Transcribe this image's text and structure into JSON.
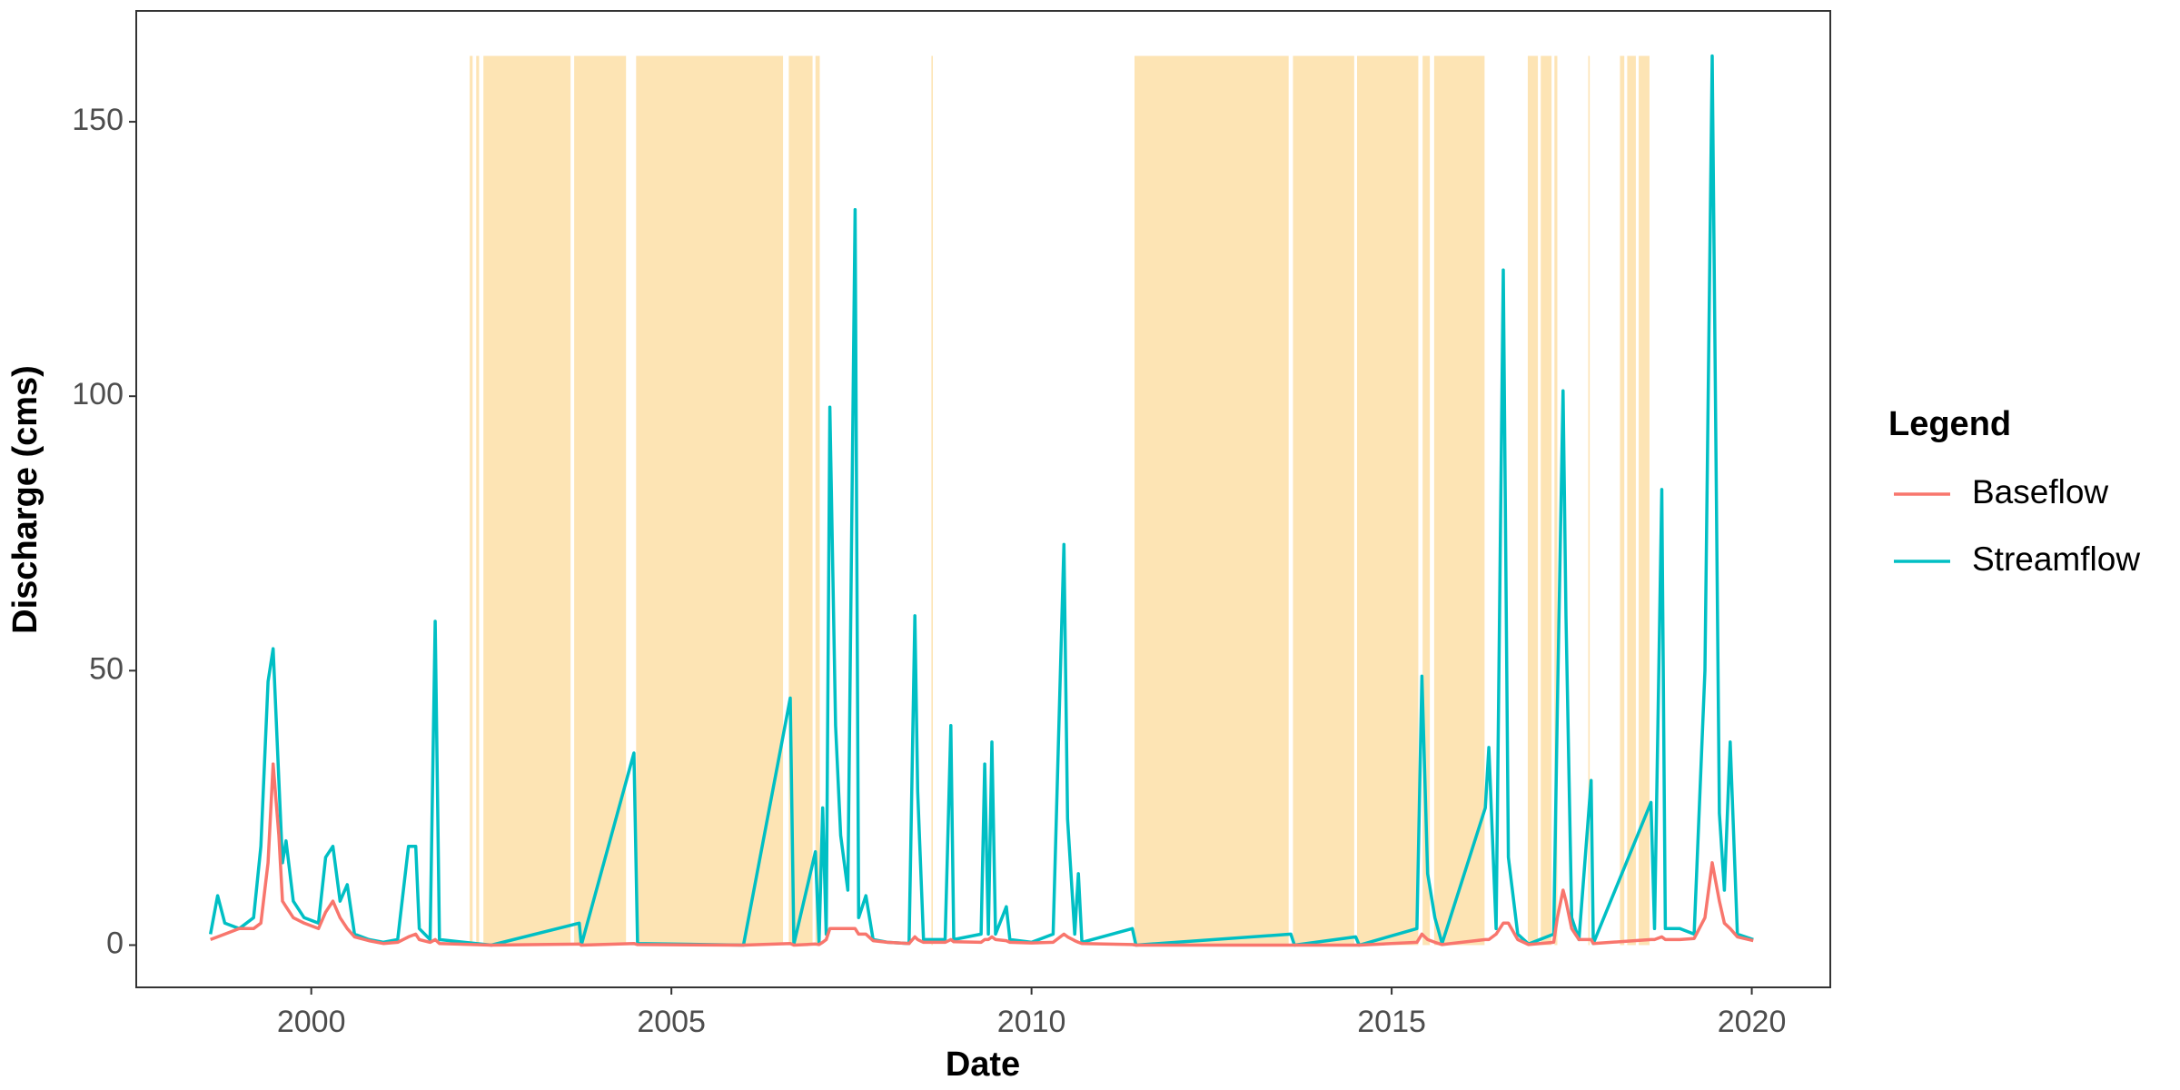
{
  "chart_data": {
    "type": "line",
    "x_label": "Date",
    "y_label": "Discharge (cms)",
    "legend_title": "Legend",
    "legend_position": "right",
    "xlim": [
      1997.57,
      2021.09
    ],
    "xticks": [
      2000,
      2005,
      2010,
      2015,
      2020
    ],
    "ylim": [
      -7.7,
      170.2
    ],
    "yticks": [
      0,
      50,
      100,
      150
    ],
    "grid": false,
    "shade_color": "#fde4b4",
    "shade_ymax": 162,
    "shaded_spans": [
      [
        2002.2,
        2002.24
      ],
      [
        2002.29,
        2002.33
      ],
      [
        2002.39,
        2003.6
      ],
      [
        2003.65,
        2004.37
      ],
      [
        2004.51,
        2006.55
      ],
      [
        2006.63,
        2006.96
      ],
      [
        2007.0,
        2007.06
      ],
      [
        2008.61,
        2008.63
      ],
      [
        2011.43,
        2013.57
      ],
      [
        2013.63,
        2014.48
      ],
      [
        2014.52,
        2015.37
      ],
      [
        2015.43,
        2015.53
      ],
      [
        2015.59,
        2016.29
      ],
      [
        2016.89,
        2017.03
      ],
      [
        2017.07,
        2017.22
      ],
      [
        2017.26,
        2017.3
      ],
      [
        2017.73,
        2017.75
      ],
      [
        2018.17,
        2018.23
      ],
      [
        2018.27,
        2018.39
      ],
      [
        2018.43,
        2018.58
      ]
    ],
    "x": [
      1998.6,
      1998.7,
      1998.8,
      1999.0,
      1999.2,
      1999.3,
      1999.4,
      1999.47,
      1999.55,
      1999.6,
      1999.65,
      1999.75,
      1999.9,
      2000.1,
      2000.2,
      2000.3,
      2000.4,
      2000.5,
      2000.6,
      2000.8,
      2001.0,
      2001.2,
      2001.35,
      2001.45,
      2001.5,
      2001.65,
      2001.72,
      2001.78,
      2002.5,
      2003.72,
      2003.75,
      2004.48,
      2004.53,
      2006.0,
      2006.65,
      2006.7,
      2007.0,
      2007.05,
      2007.1,
      2007.15,
      2007.2,
      2007.28,
      2007.35,
      2007.45,
      2007.55,
      2007.6,
      2007.7,
      2007.8,
      2008.0,
      2008.3,
      2008.38,
      2008.42,
      2008.5,
      2008.8,
      2008.88,
      2008.92,
      2009.3,
      2009.35,
      2009.4,
      2009.45,
      2009.5,
      2009.65,
      2009.7,
      2010.0,
      2010.3,
      2010.45,
      2010.5,
      2010.6,
      2010.65,
      2010.7,
      2011.4,
      2011.45,
      2013.6,
      2013.65,
      2014.5,
      2014.55,
      2015.35,
      2015.42,
      2015.5,
      2015.6,
      2015.7,
      2016.3,
      2016.35,
      2016.45,
      2016.55,
      2016.62,
      2016.75,
      2016.9,
      2017.25,
      2017.3,
      2017.38,
      2017.42,
      2017.5,
      2017.6,
      2017.77,
      2017.8,
      2018.6,
      2018.65,
      2018.75,
      2018.8,
      2019.0,
      2019.2,
      2019.35,
      2019.45,
      2019.55,
      2019.62,
      2019.7,
      2019.8,
      2020.02
    ],
    "series": [
      {
        "name": "Baseflow",
        "color": "#f8766d",
        "values": [
          1,
          1.5,
          2,
          3,
          3,
          4,
          15,
          33,
          20,
          8,
          7,
          5,
          4,
          3,
          6,
          8,
          5,
          3,
          1.5,
          0.8,
          0.3,
          0.5,
          1.5,
          2,
          1,
          0.5,
          1,
          0.3,
          0,
          0.2,
          0,
          0.3,
          0.1,
          0,
          0.3,
          0,
          0.2,
          0.1,
          0.5,
          1,
          3,
          3,
          3,
          3,
          3,
          2,
          2,
          0.8,
          0.5,
          0.3,
          1.5,
          1,
          0.5,
          0.5,
          1,
          0.6,
          0.5,
          1,
          1,
          1.5,
          1,
          0.8,
          0.5,
          0.4,
          0.5,
          2,
          1.5,
          0.8,
          0.5,
          0.3,
          0.1,
          0,
          0,
          0,
          0,
          0,
          0.5,
          2,
          1,
          0.5,
          0.1,
          1,
          1,
          2,
          4,
          4,
          1,
          0.1,
          0.5,
          5,
          10,
          8,
          3,
          1,
          1,
          0.3,
          1,
          1,
          1.5,
          1,
          1,
          1.2,
          5,
          15,
          8,
          4,
          3,
          1.5,
          0.8
        ]
      },
      {
        "name": "Streamflow",
        "color": "#00bfc4",
        "values": [
          2,
          9,
          4,
          3,
          5,
          18,
          48,
          54,
          30,
          15,
          19,
          8,
          5,
          4,
          16,
          18,
          8,
          11,
          2,
          1,
          0.5,
          1,
          18,
          18,
          3,
          1,
          59,
          1,
          0,
          4,
          0,
          35,
          0.3,
          0,
          45,
          0.2,
          17,
          0.5,
          25,
          2,
          98,
          40,
          20,
          10,
          134,
          5,
          9,
          1,
          0.5,
          0.3,
          60,
          28,
          1,
          1,
          40,
          1,
          2,
          33,
          2,
          37,
          2,
          7,
          1,
          0.5,
          2,
          73,
          23,
          2,
          13,
          0.5,
          3,
          0,
          2,
          0,
          1.5,
          0,
          3,
          49,
          13,
          5,
          0.3,
          25,
          36,
          3,
          123,
          16,
          2,
          0.2,
          2,
          43,
          101,
          60,
          5,
          1,
          30,
          0.3,
          26,
          3,
          83,
          3,
          3,
          2,
          50,
          162,
          24,
          10,
          37,
          2,
          1
        ]
      }
    ]
  }
}
